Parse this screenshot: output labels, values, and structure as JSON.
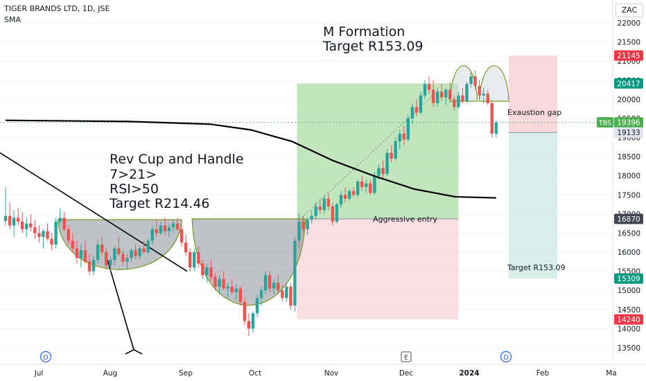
{
  "header": {
    "title": "TIGER BRANDS LTD, 1D, JSE",
    "indicator": "SMA",
    "currency": "ZAC"
  },
  "colors": {
    "up": "#26a69a",
    "down": "#ef5350",
    "sma": "#000000",
    "cup_fill": "#8d8f99",
    "cup_edge": "#7a9a2a",
    "profit_zone": "#b7e1b3",
    "loss_zone": "#f8d7da",
    "target_zone": "#d3ede9",
    "stop_zone": "#f9d5d8"
  },
  "chart_data": {
    "type": "candlestick",
    "title": "TIGER BRANDS LTD, 1D, JSE",
    "ylim": [
      13300,
      22300
    ],
    "y_ticks": [
      22000,
      21500,
      21000,
      20500,
      20000,
      19500,
      19000,
      18500,
      18000,
      17500,
      17000,
      16500,
      16000,
      15500,
      15000,
      14500,
      14000,
      13500
    ],
    "x_ticks": [
      "Jul",
      "Aug",
      "Sep",
      "Oct",
      "Nov",
      "Dec",
      "2024",
      "Feb",
      "Ma"
    ],
    "event_markers": [
      {
        "label": "D",
        "at": "Jul"
      },
      {
        "label": "E",
        "at": "Dec"
      },
      {
        "label": "D",
        "at": "2024"
      }
    ],
    "price_labels": [
      {
        "text": "21145",
        "value": 21145,
        "color": "#f23645"
      },
      {
        "text": "20417",
        "value": 20417,
        "color": "#089981"
      },
      {
        "text": "19396",
        "value": 19396,
        "color": "#4caf50",
        "tag": "TBS"
      },
      {
        "text": "19133",
        "value": 19133,
        "color": "#e0e3eb"
      },
      {
        "text": "16870",
        "value": 16870,
        "color": "#434651"
      },
      {
        "text": "15309",
        "value": 15309,
        "color": "#089981"
      },
      {
        "text": "14240",
        "value": 14240,
        "color": "#f23645"
      }
    ],
    "annotations": [
      {
        "text": "M Formation",
        "size": "large"
      },
      {
        "text": "Target R153.09",
        "size": "large"
      },
      {
        "text": "Rev Cup and Handle",
        "size": "large"
      },
      {
        "text": "7>21>",
        "size": "large"
      },
      {
        "text": "RSI>50",
        "size": "large"
      },
      {
        "text": "Target R214.46",
        "size": "large"
      },
      {
        "text": "Exaustion gap",
        "size": "small"
      },
      {
        "text": "Aggressive entry",
        "size": "small"
      },
      {
        "text": "Target R153.09",
        "size": "small"
      }
    ],
    "candles": [
      {
        "o": 16820,
        "h": 17700,
        "l": 16700,
        "c": 16950
      },
      {
        "o": 16950,
        "h": 17300,
        "l": 16600,
        "c": 16700
      },
      {
        "o": 16700,
        "h": 17100,
        "l": 16400,
        "c": 16900
      },
      {
        "o": 16900,
        "h": 17150,
        "l": 16700,
        "c": 16800
      },
      {
        "o": 16800,
        "h": 17050,
        "l": 16500,
        "c": 16600
      },
      {
        "o": 16600,
        "h": 16900,
        "l": 16400,
        "c": 16750
      },
      {
        "o": 16750,
        "h": 17000,
        "l": 16550,
        "c": 16650
      },
      {
        "o": 16650,
        "h": 16850,
        "l": 16350,
        "c": 16500
      },
      {
        "o": 16500,
        "h": 16700,
        "l": 16250,
        "c": 16400
      },
      {
        "o": 16400,
        "h": 16600,
        "l": 16100,
        "c": 16550
      },
      {
        "o": 16550,
        "h": 16750,
        "l": 16300,
        "c": 16350
      },
      {
        "o": 16350,
        "h": 16500,
        "l": 16050,
        "c": 16200
      },
      {
        "o": 16200,
        "h": 16900,
        "l": 16100,
        "c": 16800
      },
      {
        "o": 16800,
        "h": 17150,
        "l": 16700,
        "c": 16900
      },
      {
        "o": 16900,
        "h": 17050,
        "l": 16550,
        "c": 16600
      },
      {
        "o": 16600,
        "h": 16700,
        "l": 16200,
        "c": 16300
      },
      {
        "o": 16300,
        "h": 16500,
        "l": 16000,
        "c": 16100
      },
      {
        "o": 16100,
        "h": 16300,
        "l": 15700,
        "c": 15850
      },
      {
        "o": 15850,
        "h": 16200,
        "l": 15600,
        "c": 16050
      },
      {
        "o": 16050,
        "h": 16300,
        "l": 15700,
        "c": 15750
      },
      {
        "o": 15750,
        "h": 15950,
        "l": 15400,
        "c": 15500
      },
      {
        "o": 15500,
        "h": 15900,
        "l": 15400,
        "c": 15800
      },
      {
        "o": 15800,
        "h": 16300,
        "l": 15700,
        "c": 16200
      },
      {
        "o": 16200,
        "h": 16400,
        "l": 15900,
        "c": 16000
      },
      {
        "o": 16000,
        "h": 16100,
        "l": 15550,
        "c": 15650
      },
      {
        "o": 15650,
        "h": 15900,
        "l": 15500,
        "c": 15800
      },
      {
        "o": 15800,
        "h": 16150,
        "l": 15650,
        "c": 16100
      },
      {
        "o": 16100,
        "h": 16400,
        "l": 15900,
        "c": 15950
      },
      {
        "o": 15950,
        "h": 16050,
        "l": 15650,
        "c": 15750
      },
      {
        "o": 15750,
        "h": 15950,
        "l": 15550,
        "c": 15850
      },
      {
        "o": 15850,
        "h": 16100,
        "l": 15750,
        "c": 16050
      },
      {
        "o": 16050,
        "h": 16200,
        "l": 15800,
        "c": 15900
      },
      {
        "o": 15900,
        "h": 16150,
        "l": 15800,
        "c": 16100
      },
      {
        "o": 16100,
        "h": 16300,
        "l": 15950,
        "c": 16000
      },
      {
        "o": 16000,
        "h": 16350,
        "l": 15950,
        "c": 16300
      },
      {
        "o": 16300,
        "h": 16700,
        "l": 16200,
        "c": 16600
      },
      {
        "o": 16600,
        "h": 16850,
        "l": 16400,
        "c": 16500
      },
      {
        "o": 16500,
        "h": 16800,
        "l": 16450,
        "c": 16700
      },
      {
        "o": 16700,
        "h": 16900,
        "l": 16450,
        "c": 16550
      },
      {
        "o": 16550,
        "h": 16750,
        "l": 16400,
        "c": 16650
      },
      {
        "o": 16650,
        "h": 16850,
        "l": 16500,
        "c": 16750
      },
      {
        "o": 16750,
        "h": 16900,
        "l": 16550,
        "c": 16600
      },
      {
        "o": 16600,
        "h": 16700,
        "l": 16150,
        "c": 16250
      },
      {
        "o": 16250,
        "h": 16450,
        "l": 15900,
        "c": 16000
      },
      {
        "o": 16000,
        "h": 16100,
        "l": 15500,
        "c": 15600
      },
      {
        "o": 15600,
        "h": 16100,
        "l": 15500,
        "c": 16000
      },
      {
        "o": 16000,
        "h": 16150,
        "l": 15600,
        "c": 15700
      },
      {
        "o": 15700,
        "h": 15800,
        "l": 15300,
        "c": 15400
      },
      {
        "o": 15400,
        "h": 15700,
        "l": 15200,
        "c": 15600
      },
      {
        "o": 15600,
        "h": 15800,
        "l": 15250,
        "c": 15350
      },
      {
        "o": 15350,
        "h": 15450,
        "l": 15000,
        "c": 15100
      },
      {
        "o": 15100,
        "h": 15400,
        "l": 14900,
        "c": 15300
      },
      {
        "o": 15300,
        "h": 15500,
        "l": 15000,
        "c": 15050
      },
      {
        "o": 15050,
        "h": 15200,
        "l": 14800,
        "c": 15100
      },
      {
        "o": 15100,
        "h": 15300,
        "l": 14900,
        "c": 14950
      },
      {
        "o": 14950,
        "h": 15150,
        "l": 14750,
        "c": 15050
      },
      {
        "o": 15050,
        "h": 15100,
        "l": 14600,
        "c": 14700
      },
      {
        "o": 14700,
        "h": 14800,
        "l": 14100,
        "c": 14200
      },
      {
        "o": 14200,
        "h": 14400,
        "l": 13800,
        "c": 14000
      },
      {
        "o": 14000,
        "h": 14450,
        "l": 13900,
        "c": 14400
      },
      {
        "o": 14400,
        "h": 14900,
        "l": 14300,
        "c": 14800
      },
      {
        "o": 14800,
        "h": 15100,
        "l": 14600,
        "c": 15000
      },
      {
        "o": 15000,
        "h": 15500,
        "l": 14900,
        "c": 15400
      },
      {
        "o": 15400,
        "h": 15500,
        "l": 14950,
        "c": 15050
      },
      {
        "o": 15050,
        "h": 15300,
        "l": 14900,
        "c": 15200
      },
      {
        "o": 15200,
        "h": 15400,
        "l": 14900,
        "c": 15000
      },
      {
        "o": 15000,
        "h": 15150,
        "l": 14700,
        "c": 14800
      },
      {
        "o": 14800,
        "h": 15200,
        "l": 14700,
        "c": 15100
      },
      {
        "o": 15100,
        "h": 15200,
        "l": 14500,
        "c": 14600
      },
      {
        "o": 14600,
        "h": 16400,
        "l": 14450,
        "c": 16300
      },
      {
        "o": 16300,
        "h": 17000,
        "l": 16100,
        "c": 16800
      },
      {
        "o": 16800,
        "h": 16950,
        "l": 16500,
        "c": 16600
      },
      {
        "o": 16600,
        "h": 16900,
        "l": 16450,
        "c": 16850
      },
      {
        "o": 16850,
        "h": 17100,
        "l": 16750,
        "c": 16950
      },
      {
        "o": 16950,
        "h": 17300,
        "l": 16850,
        "c": 17200
      },
      {
        "o": 17200,
        "h": 17400,
        "l": 17000,
        "c": 17100
      },
      {
        "o": 17100,
        "h": 17500,
        "l": 17000,
        "c": 17400
      },
      {
        "o": 17400,
        "h": 17550,
        "l": 17100,
        "c": 17200
      },
      {
        "o": 17200,
        "h": 17300,
        "l": 16700,
        "c": 16800
      },
      {
        "o": 16800,
        "h": 17300,
        "l": 16750,
        "c": 17250
      },
      {
        "o": 17250,
        "h": 17600,
        "l": 17150,
        "c": 17500
      },
      {
        "o": 17500,
        "h": 17700,
        "l": 17300,
        "c": 17400
      },
      {
        "o": 17400,
        "h": 17650,
        "l": 17350,
        "c": 17600
      },
      {
        "o": 17600,
        "h": 17700,
        "l": 17450,
        "c": 17500
      },
      {
        "o": 17500,
        "h": 17900,
        "l": 17450,
        "c": 17850
      },
      {
        "o": 17850,
        "h": 18000,
        "l": 17600,
        "c": 17700
      },
      {
        "o": 17700,
        "h": 17900,
        "l": 17550,
        "c": 17800
      },
      {
        "o": 17800,
        "h": 17900,
        "l": 17500,
        "c": 17550
      },
      {
        "o": 17550,
        "h": 18100,
        "l": 17500,
        "c": 18000
      },
      {
        "o": 18000,
        "h": 18300,
        "l": 17900,
        "c": 18200
      },
      {
        "o": 18200,
        "h": 18400,
        "l": 17950,
        "c": 18050
      },
      {
        "o": 18050,
        "h": 18700,
        "l": 18000,
        "c": 18600
      },
      {
        "o": 18600,
        "h": 18800,
        "l": 18350,
        "c": 18450
      },
      {
        "o": 18450,
        "h": 19000,
        "l": 18400,
        "c": 18900
      },
      {
        "o": 18900,
        "h": 19200,
        "l": 18700,
        "c": 19100
      },
      {
        "o": 19100,
        "h": 19300,
        "l": 18800,
        "c": 18950
      },
      {
        "o": 18950,
        "h": 19600,
        "l": 18900,
        "c": 19500
      },
      {
        "o": 19500,
        "h": 19900,
        "l": 19350,
        "c": 19800
      },
      {
        "o": 19800,
        "h": 20000,
        "l": 19550,
        "c": 19650
      },
      {
        "o": 19650,
        "h": 20200,
        "l": 19600,
        "c": 20100
      },
      {
        "o": 20100,
        "h": 20500,
        "l": 20000,
        "c": 20400
      },
      {
        "o": 20400,
        "h": 20600,
        "l": 20150,
        "c": 20250
      },
      {
        "o": 20250,
        "h": 20500,
        "l": 19800,
        "c": 19900
      },
      {
        "o": 19900,
        "h": 20300,
        "l": 19800,
        "c": 20200
      },
      {
        "o": 20200,
        "h": 20400,
        "l": 19950,
        "c": 20050
      },
      {
        "o": 20050,
        "h": 20300,
        "l": 19850,
        "c": 20250
      },
      {
        "o": 20250,
        "h": 20450,
        "l": 19900,
        "c": 20000
      },
      {
        "o": 20000,
        "h": 20100,
        "l": 19700,
        "c": 19800
      },
      {
        "o": 19800,
        "h": 20200,
        "l": 19750,
        "c": 20100
      },
      {
        "o": 20100,
        "h": 20300,
        "l": 19900,
        "c": 19950
      },
      {
        "o": 19950,
        "h": 20450,
        "l": 19900,
        "c": 20400
      },
      {
        "o": 20400,
        "h": 20700,
        "l": 20300,
        "c": 20600
      },
      {
        "o": 20600,
        "h": 20750,
        "l": 20250,
        "c": 20350
      },
      {
        "o": 20350,
        "h": 20500,
        "l": 20000,
        "c": 20100
      },
      {
        "o": 20100,
        "h": 20300,
        "l": 19900,
        "c": 20150
      },
      {
        "o": 20150,
        "h": 20250,
        "l": 19850,
        "c": 19900
      },
      {
        "o": 19900,
        "h": 19950,
        "l": 19000,
        "c": 19100
      },
      {
        "o": 19100,
        "h": 19450,
        "l": 19000,
        "c": 19396
      }
    ],
    "sma_curve": [
      {
        "t": 0,
        "v": 19450
      },
      {
        "t": 30,
        "v": 19420
      },
      {
        "t": 50,
        "v": 19350
      },
      {
        "t": 60,
        "v": 19200
      },
      {
        "t": 70,
        "v": 18900
      },
      {
        "t": 80,
        "v": 18400
      },
      {
        "t": 90,
        "v": 18000
      },
      {
        "t": 100,
        "v": 17650
      },
      {
        "t": 110,
        "v": 17450
      },
      {
        "t": 120,
        "v": 17420
      }
    ]
  }
}
